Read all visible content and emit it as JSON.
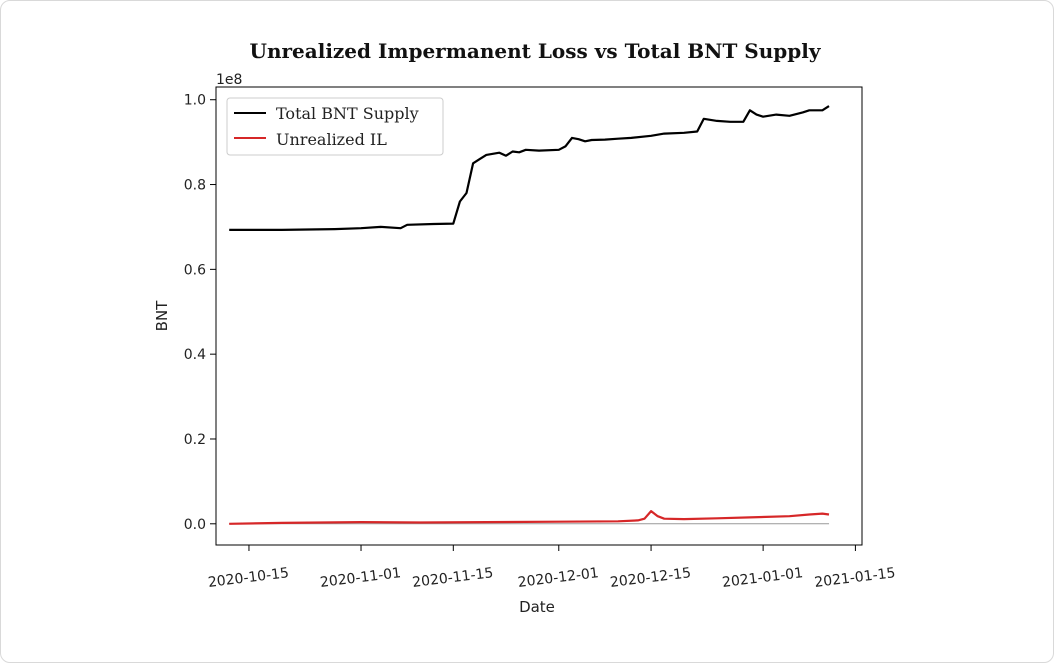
{
  "chart_data": {
    "type": "line",
    "title": "Unrealized Impermanent Loss vs Total BNT Supply",
    "xlabel": "Date",
    "ylabel": "BNT",
    "y_multiplier_label": "1e8",
    "y_multiplier": 100000000,
    "xlim": [
      "2020-10-10",
      "2021-01-16"
    ],
    "ylim": [
      -0.05,
      1.03
    ],
    "x_ticks": [
      "2020-10-15",
      "2020-11-01",
      "2020-11-15",
      "2020-12-01",
      "2020-12-15",
      "2021-01-01",
      "2021-01-15"
    ],
    "y_ticks": [
      0.0,
      0.2,
      0.4,
      0.6,
      0.8,
      1.0
    ],
    "y_tick_labels": [
      "0.0",
      "0.2",
      "0.4",
      "0.6",
      "0.8",
      "1.0"
    ],
    "grid": false,
    "legend_position": "top-left",
    "series": [
      {
        "name": "Total BNT Supply",
        "color": "#000000",
        "x": [
          "2020-10-12",
          "2020-10-20",
          "2020-10-28",
          "2020-11-01",
          "2020-11-04",
          "2020-11-07",
          "2020-11-08",
          "2020-11-12",
          "2020-11-15",
          "2020-11-16",
          "2020-11-17",
          "2020-11-18",
          "2020-11-19",
          "2020-11-20",
          "2020-11-22",
          "2020-11-23",
          "2020-11-24",
          "2020-11-25",
          "2020-11-26",
          "2020-11-28",
          "2020-12-01",
          "2020-12-02",
          "2020-12-03",
          "2020-12-04",
          "2020-12-05",
          "2020-12-06",
          "2020-12-08",
          "2020-12-10",
          "2020-12-12",
          "2020-12-15",
          "2020-12-17",
          "2020-12-20",
          "2020-12-22",
          "2020-12-23",
          "2020-12-25",
          "2020-12-27",
          "2020-12-29",
          "2020-12-30",
          "2020-12-31",
          "2021-01-01",
          "2021-01-03",
          "2021-01-05",
          "2021-01-07",
          "2021-01-08",
          "2021-01-10",
          "2021-01-11"
        ],
        "values": [
          0.693,
          0.693,
          0.695,
          0.697,
          0.7,
          0.697,
          0.705,
          0.707,
          0.708,
          0.76,
          0.78,
          0.85,
          0.86,
          0.87,
          0.875,
          0.868,
          0.878,
          0.876,
          0.882,
          0.88,
          0.882,
          0.89,
          0.91,
          0.907,
          0.902,
          0.905,
          0.906,
          0.908,
          0.91,
          0.915,
          0.92,
          0.922,
          0.925,
          0.955,
          0.95,
          0.948,
          0.948,
          0.975,
          0.965,
          0.96,
          0.965,
          0.962,
          0.97,
          0.975,
          0.975,
          0.985
        ]
      },
      {
        "name": "Unrealized IL",
        "color": "#d62728",
        "x": [
          "2020-10-12",
          "2020-10-20",
          "2020-11-01",
          "2020-11-10",
          "2020-11-20",
          "2020-12-01",
          "2020-12-10",
          "2020-12-13",
          "2020-12-14",
          "2020-12-15",
          "2020-12-16",
          "2020-12-17",
          "2020-12-20",
          "2020-12-25",
          "2020-12-30",
          "2021-01-05",
          "2021-01-08",
          "2021-01-10",
          "2021-01-11"
        ],
        "values": [
          0.0,
          0.002,
          0.004,
          0.003,
          0.004,
          0.005,
          0.006,
          0.008,
          0.012,
          0.03,
          0.018,
          0.012,
          0.011,
          0.013,
          0.015,
          0.018,
          0.022,
          0.024,
          0.022
        ]
      }
    ]
  }
}
